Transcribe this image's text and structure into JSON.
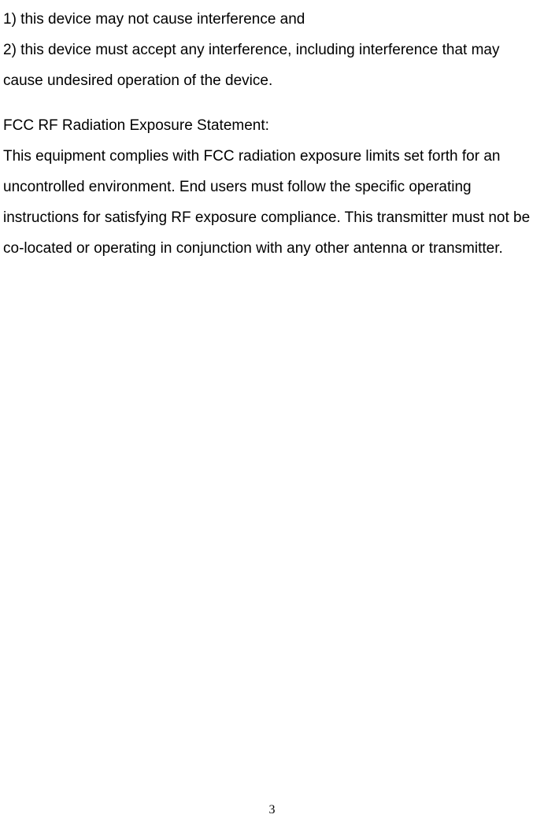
{
  "content": {
    "line1": "1) this device may not cause interference and",
    "line2": "2) this device must accept any interference, including interference that may cause undesired operation of the device.",
    "heading": "FCC RF Radiation Exposure Statement:",
    "body": "This equipment complies with FCC radiation exposure limits set forth for an uncontrolled environment. End users must follow the specific operating instructions for satisfying RF exposure compliance. This transmitter must not be co-located or operating in conjunction with any other antenna or transmitter."
  },
  "page_number": "3"
}
